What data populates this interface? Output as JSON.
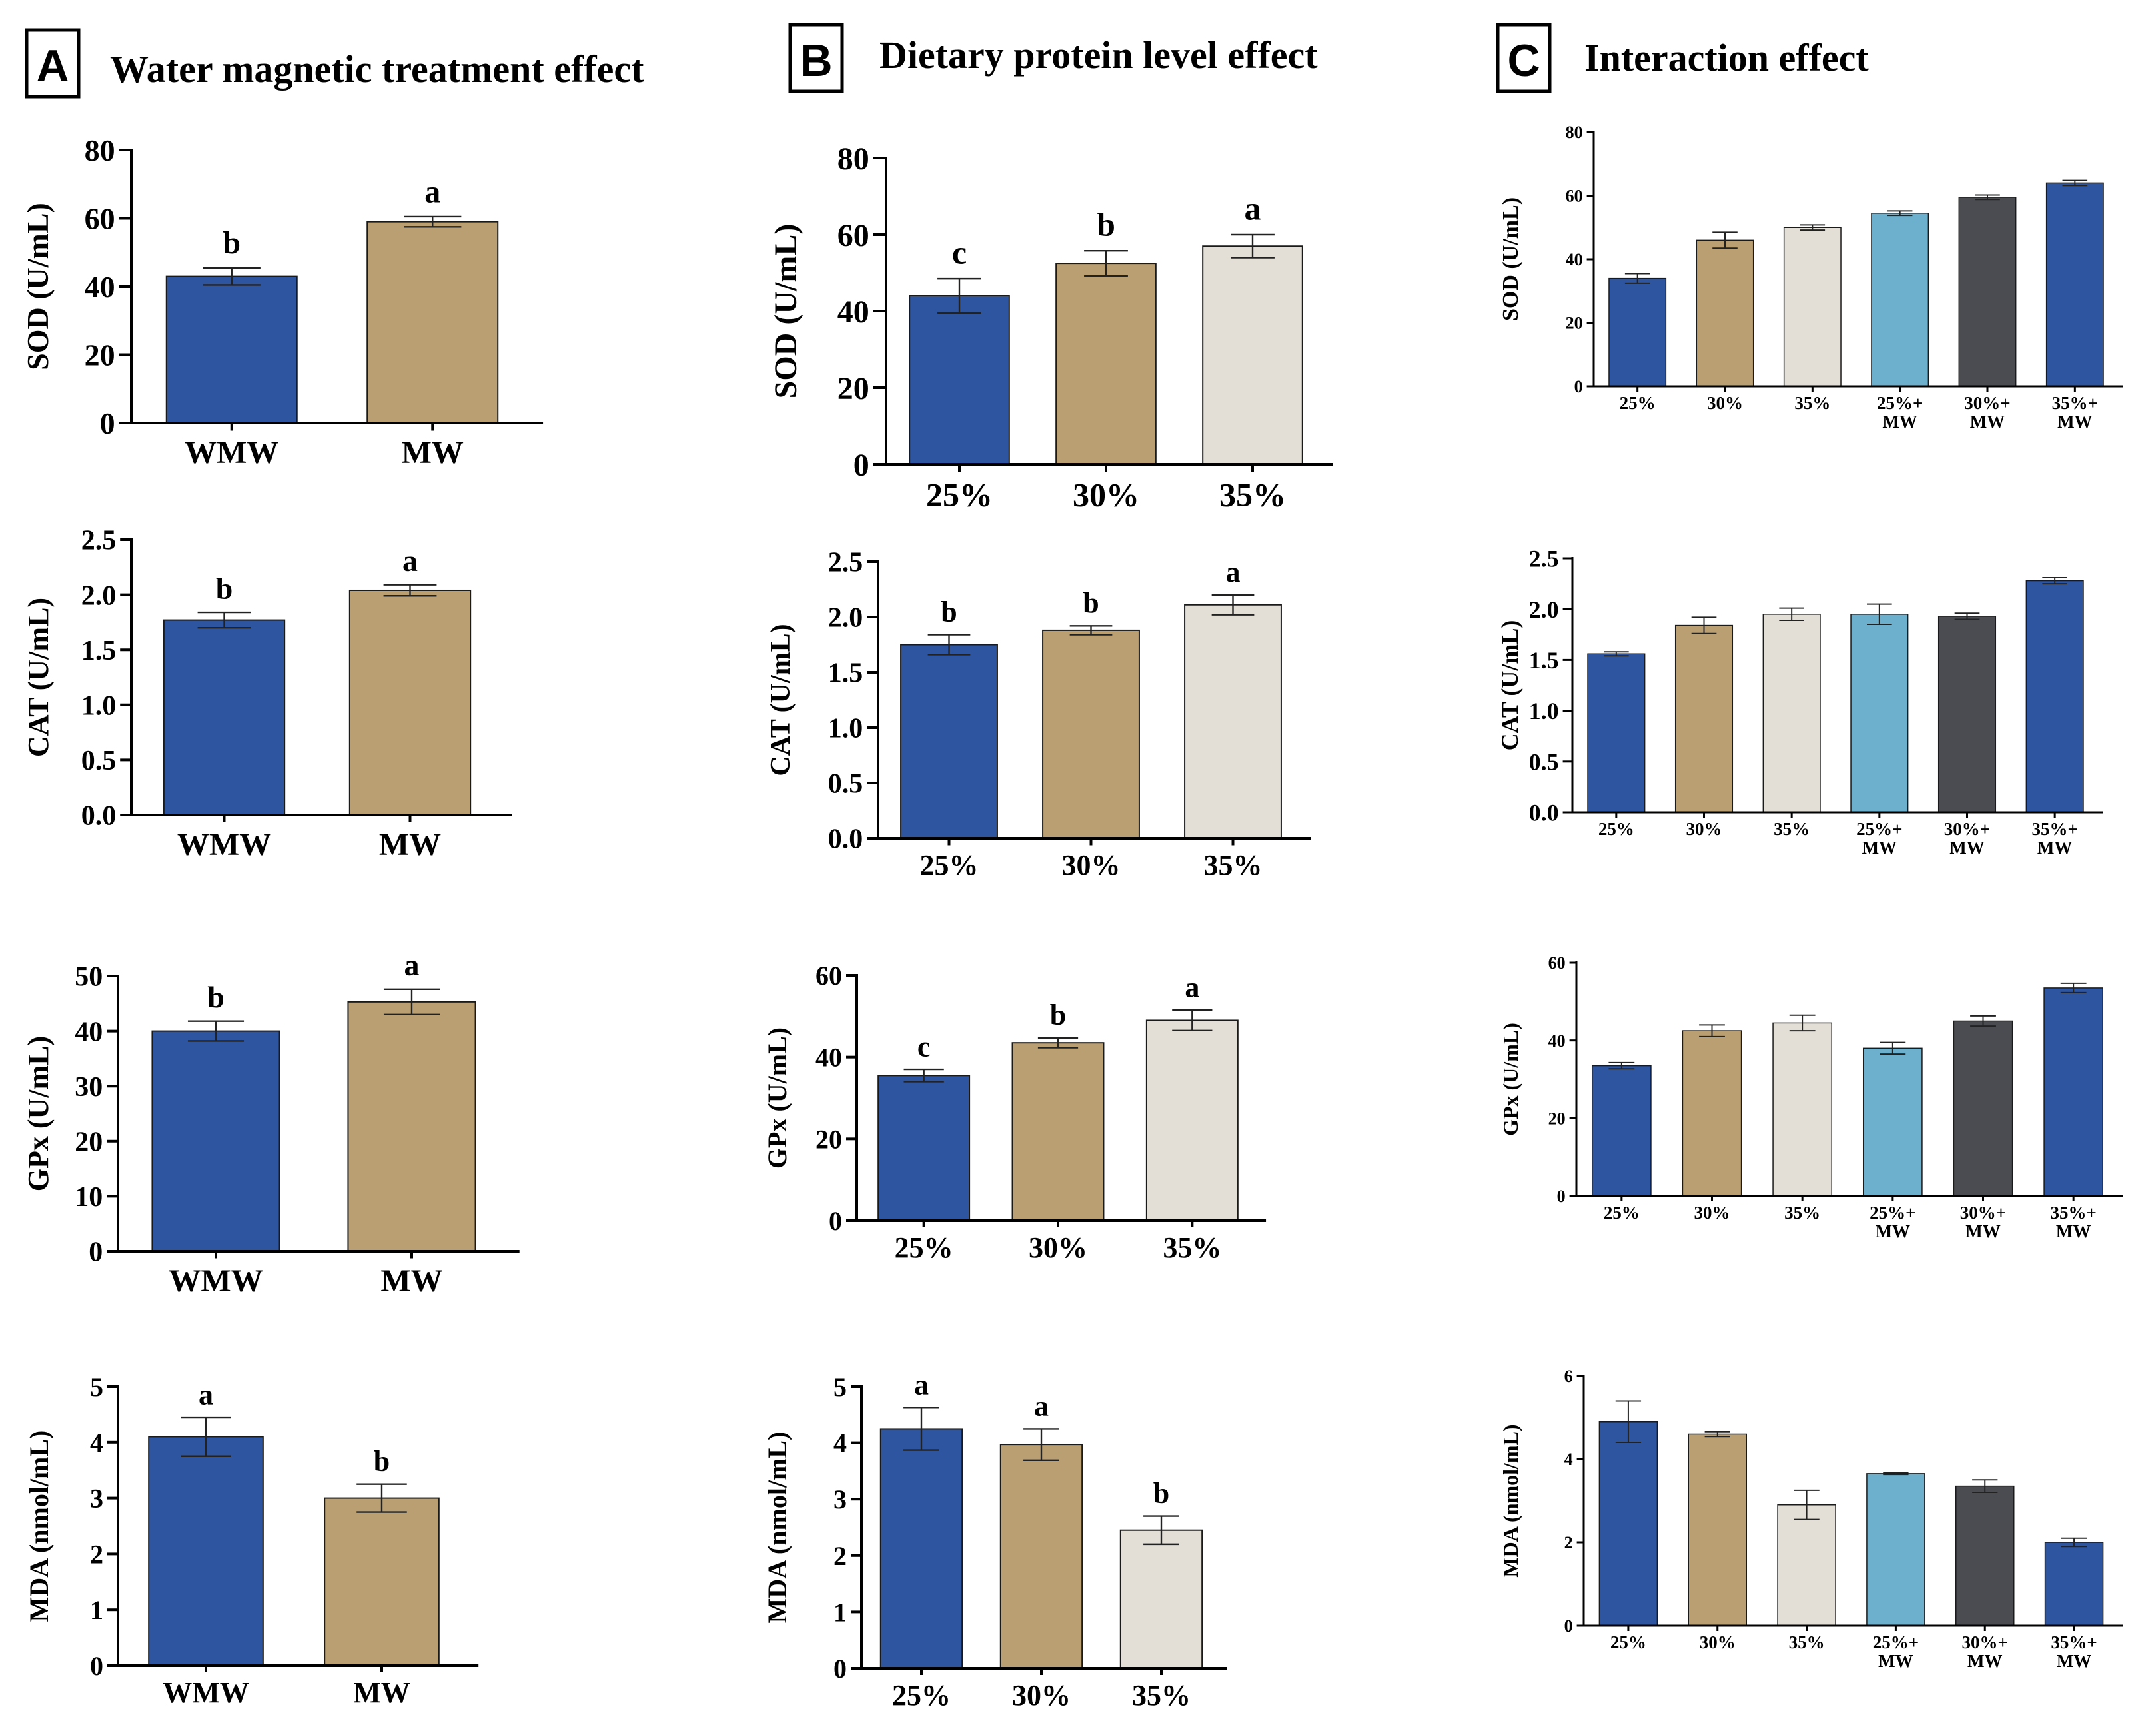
{
  "panels": [
    {
      "letter": "A",
      "title": "Water magnetic treatment effect"
    },
    {
      "letter": "B",
      "title": "Dietary protein level effect"
    },
    {
      "letter": "C",
      "title": "Interaction effect"
    }
  ],
  "colors": {
    "dark_blue": "#2E55A0",
    "tan": "#BA9F72",
    "light_gray": "#E3DFD7",
    "light_blue": "#6DB0CD",
    "dark_gray": "#4A4C52",
    "axis": "#000000",
    "background": "#FFFFFF"
  },
  "chart_data": [
    {
      "id": "A-SOD",
      "type": "bar",
      "title": "",
      "xlabel": "",
      "ylabel": "SOD (U/mL)",
      "categories": [
        "WMW",
        "MW"
      ],
      "values": [
        43,
        59
      ],
      "errors": [
        2.5,
        1.5
      ],
      "sig": [
        "b",
        "a"
      ],
      "ylim": [
        0,
        80
      ],
      "yticks": [
        "0",
        "20",
        "40",
        "60",
        "80"
      ],
      "colors": [
        "dark_blue",
        "tan"
      ]
    },
    {
      "id": "A-CAT",
      "type": "bar",
      "title": "",
      "xlabel": "",
      "ylabel": "CAT (U/mL)",
      "categories": [
        "WMW",
        "MW"
      ],
      "values": [
        1.77,
        2.04
      ],
      "errors": [
        0.07,
        0.05
      ],
      "sig": [
        "b",
        "a"
      ],
      "ylim": [
        0,
        2.5
      ],
      "yticks": [
        "0.0",
        "0.5",
        "1.0",
        "1.5",
        "2.0",
        "2.5"
      ],
      "colors": [
        "dark_blue",
        "tan"
      ]
    },
    {
      "id": "A-GPx",
      "type": "bar",
      "title": "",
      "xlabel": "",
      "ylabel": "GPx (U/mL)",
      "categories": [
        "WMW",
        "MW"
      ],
      "values": [
        40,
        45.3
      ],
      "errors": [
        1.8,
        2.3
      ],
      "sig": [
        "b",
        "a"
      ],
      "ylim": [
        0,
        50
      ],
      "yticks": [
        "0",
        "10",
        "20",
        "30",
        "40",
        "50"
      ],
      "colors": [
        "dark_blue",
        "tan"
      ]
    },
    {
      "id": "A-MDA",
      "type": "bar",
      "title": "",
      "xlabel": "",
      "ylabel": "MDA (nmol/mL)",
      "categories": [
        "WMW",
        "MW"
      ],
      "values": [
        4.1,
        3.0
      ],
      "errors": [
        0.35,
        0.25
      ],
      "sig": [
        "a",
        "b"
      ],
      "ylim": [
        0,
        5
      ],
      "yticks": [
        "0",
        "1",
        "2",
        "3",
        "4",
        "5"
      ],
      "colors": [
        "dark_blue",
        "tan"
      ]
    },
    {
      "id": "B-SOD",
      "type": "bar",
      "title": "",
      "xlabel": "",
      "ylabel": "SOD (U/mL)",
      "categories": [
        "25%",
        "30%",
        "35%"
      ],
      "values": [
        44,
        52.5,
        57
      ],
      "errors": [
        4.5,
        3.3,
        3.0
      ],
      "sig": [
        "c",
        "b",
        "a"
      ],
      "ylim": [
        0,
        80
      ],
      "yticks": [
        "0",
        "20",
        "40",
        "60",
        "80"
      ],
      "colors": [
        "dark_blue",
        "tan",
        "light_gray"
      ]
    },
    {
      "id": "B-CAT",
      "type": "bar",
      "title": "",
      "xlabel": "",
      "ylabel": "CAT (U/mL)",
      "categories": [
        "25%",
        "30%",
        "35%"
      ],
      "values": [
        1.75,
        1.88,
        2.11
      ],
      "errors": [
        0.09,
        0.04,
        0.09
      ],
      "sig": [
        "b",
        "b",
        "a"
      ],
      "ylim": [
        0,
        2.5
      ],
      "yticks": [
        "0.0",
        "0.5",
        "1.0",
        "1.5",
        "2.0",
        "2.5"
      ],
      "colors": [
        "dark_blue",
        "tan",
        "light_gray"
      ]
    },
    {
      "id": "B-GPx",
      "type": "bar",
      "title": "",
      "xlabel": "",
      "ylabel": "GPx (U/mL)",
      "categories": [
        "25%",
        "30%",
        "35%"
      ],
      "values": [
        35.5,
        43.5,
        49
      ],
      "errors": [
        1.5,
        1.2,
        2.5
      ],
      "sig": [
        "c",
        "b",
        "a"
      ],
      "ylim": [
        0,
        60
      ],
      "yticks": [
        "0",
        "20",
        "40",
        "60"
      ],
      "colors": [
        "dark_blue",
        "tan",
        "light_gray"
      ]
    },
    {
      "id": "B-MDA",
      "type": "bar",
      "title": "",
      "xlabel": "",
      "ylabel": "MDA (nmol/mL)",
      "categories": [
        "25%",
        "30%",
        "35%"
      ],
      "values": [
        4.25,
        3.97,
        2.45
      ],
      "errors": [
        0.38,
        0.28,
        0.25
      ],
      "sig": [
        "a",
        "a",
        "b"
      ],
      "ylim": [
        0,
        5
      ],
      "yticks": [
        "0",
        "1",
        "2",
        "3",
        "4",
        "5"
      ],
      "colors": [
        "dark_blue",
        "tan",
        "light_gray"
      ]
    },
    {
      "id": "C-SOD",
      "type": "bar",
      "title": "",
      "xlabel": "",
      "ylabel": "SOD (U/mL)",
      "categories": [
        "25%",
        "30%",
        "35%",
        "25%+\nMW",
        "30%+\nMW",
        "35%+\nMW"
      ],
      "values": [
        34,
        46,
        50,
        54.5,
        59.5,
        64
      ],
      "errors": [
        1.5,
        2.5,
        0.8,
        0.7,
        0.7,
        0.8
      ],
      "sig": [],
      "ylim": [
        0,
        80
      ],
      "yticks": [
        "0",
        "20",
        "40",
        "60",
        "80"
      ],
      "colors": [
        "dark_blue",
        "tan",
        "light_gray",
        "light_blue",
        "dark_gray",
        "dark_blue"
      ]
    },
    {
      "id": "C-CAT",
      "type": "bar",
      "title": "",
      "xlabel": "",
      "ylabel": "CAT (U/mL)",
      "categories": [
        "25%",
        "30%",
        "35%",
        "25%+\nMW",
        "30%+\nMW",
        "35%+\nMW"
      ],
      "values": [
        1.56,
        1.84,
        1.95,
        1.95,
        1.93,
        2.28
      ],
      "errors": [
        0.02,
        0.08,
        0.06,
        0.1,
        0.03,
        0.03
      ],
      "sig": [],
      "ylim": [
        0,
        2.5
      ],
      "yticks": [
        "0.0",
        "0.5",
        "1.0",
        "1.5",
        "2.0",
        "2.5"
      ],
      "colors": [
        "dark_blue",
        "tan",
        "light_gray",
        "light_blue",
        "dark_gray",
        "dark_blue"
      ]
    },
    {
      "id": "C-GPx",
      "type": "bar",
      "title": "",
      "xlabel": "",
      "ylabel": "GPx (U/mL)",
      "categories": [
        "25%",
        "30%",
        "35%",
        "25%+\nMW",
        "30%+\nMW",
        "35%+\nMW"
      ],
      "values": [
        33.5,
        42.5,
        44.5,
        38,
        45,
        53.5
      ],
      "errors": [
        0.8,
        1.5,
        2.0,
        1.5,
        1.3,
        1.2
      ],
      "sig": [],
      "ylim": [
        0,
        60
      ],
      "yticks": [
        "0",
        "20",
        "40",
        "60"
      ],
      "colors": [
        "dark_blue",
        "tan",
        "light_gray",
        "light_blue",
        "dark_gray",
        "dark_blue"
      ]
    },
    {
      "id": "C-MDA",
      "type": "bar",
      "title": "",
      "xlabel": "",
      "ylabel": "MDA (nmol/mL)",
      "categories": [
        "25%",
        "30%",
        "35%",
        "25%+\nMW",
        "30%+\nMW",
        "35%+\nMW"
      ],
      "values": [
        4.9,
        4.6,
        2.9,
        3.65,
        3.35,
        2.0
      ],
      "errors": [
        0.5,
        0.06,
        0.35,
        0.02,
        0.15,
        0.1
      ],
      "sig": [],
      "ylim": [
        0,
        6
      ],
      "yticks": [
        "0",
        "2",
        "4",
        "6"
      ],
      "colors": [
        "dark_blue",
        "tan",
        "light_gray",
        "light_blue",
        "dark_gray",
        "dark_blue"
      ]
    }
  ]
}
